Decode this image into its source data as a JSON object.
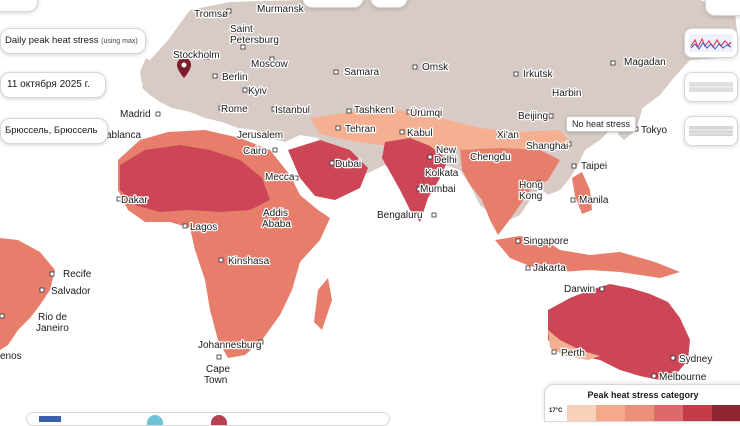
{
  "overlay": {
    "metric_label": "Daily peak heat stress",
    "metric_suffix": "(using max)",
    "date": "11 октября 2025 г.",
    "location": "Брюссель, Брюссель",
    "tooltip": "No heat stress"
  },
  "legend": {
    "title": "Peak heat stress category",
    "min_label": "17°C",
    "colors": [
      "#f8d2b8",
      "#f3a98a",
      "#ec8f78",
      "#dc6a6a",
      "#c23c49",
      "#8e2530"
    ]
  },
  "map_colors": {
    "land": "#d8cbc5",
    "water": "#ffffff",
    "heat_low": "#f4b091",
    "heat_mid": "#e77d6b",
    "heat_high": "#cc4656",
    "heat_extreme": "#a8323d",
    "marker": "#7b1d2a"
  },
  "cities": {
    "tromso": "Tromsø",
    "murmansk": "Murmansk",
    "saint": "Saint",
    "petersburg": "Petersburg",
    "stockholm": "Stockholm",
    "moscow": "Moscow",
    "samara": "Samara",
    "omsk": "Omsk",
    "irkutsk": "Irkutsk",
    "magadan": "Magadan",
    "berlin": "Berlin",
    "kyiv": "Kyiv",
    "harbin": "Harbin",
    "madrid": "Madrid",
    "rome": "Rome",
    "istanbul": "Istanbul",
    "tashkent": "Tashkent",
    "urumqi": "Ürümqi",
    "beijing": "Beijing",
    "casablanca": "sablanca",
    "jerusalem": "Jerusalem",
    "tehran": "Tehran",
    "kabul": "Kabul",
    "xian": "Xi'an",
    "tokyo": "Tokyo",
    "cairo": "Cairo",
    "new_delhi_1": "New",
    "new_delhi_2": "Delhi",
    "chengdu": "Chengdu",
    "shanghai": "Shanghai",
    "dubai": "Dubai",
    "kolkata": "Kolkata",
    "taipei": "Taipei",
    "mecca": "Mecca",
    "mumbai": "Mumbai",
    "hong_kong_1": "Hong",
    "hong_kong_2": "Kong",
    "dakar": "Dakar",
    "manila": "Manila",
    "bengaluru": "Bengaluru",
    "addis_1": "Addis",
    "addis_2": "Ababa",
    "lagos": "Lagos",
    "singapore": "Singapore",
    "kinshasa": "Kinshasa",
    "jakarta": "Jakarta",
    "recife": "Recife",
    "salvador": "Salvador",
    "rio_1": "Rio de",
    "rio_2": "Janeiro",
    "darwin": "Darwin",
    "johannesburg": "Johannesburg",
    "perth": "Perth",
    "sydney": "Sydney",
    "cape_1": "Cape",
    "cape_2": "Town",
    "melbourne": "Melbourne",
    "enos": "enos"
  }
}
